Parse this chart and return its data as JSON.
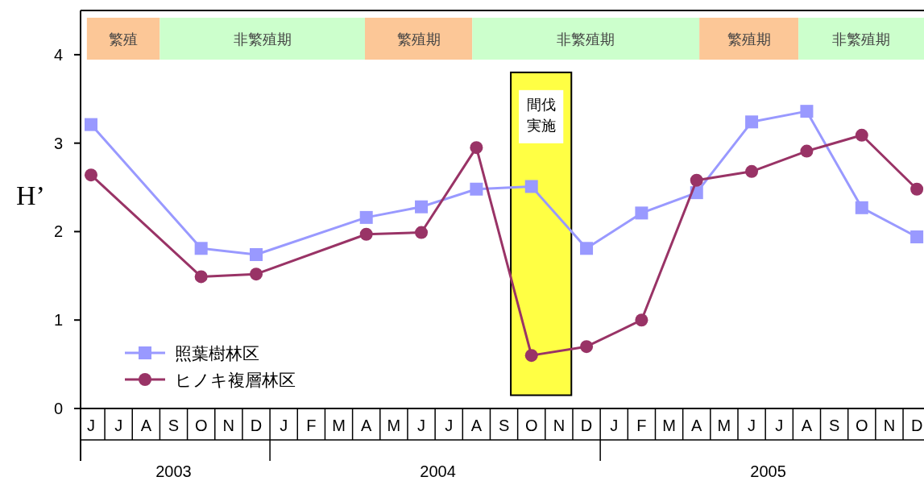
{
  "chart_data": {
    "type": "line",
    "ylabel": "H’",
    "categories": [
      "J",
      "J",
      "A",
      "S",
      "O",
      "N",
      "D",
      "J",
      "F",
      "M",
      "A",
      "M",
      "J",
      "J",
      "A",
      "S",
      "O",
      "N",
      "D",
      "J",
      "F",
      "M",
      "A",
      "M",
      "J",
      "J",
      "A",
      "S",
      "O",
      "N",
      "D"
    ],
    "series": [
      {
        "name": "照葉樹林区",
        "color": "#9999ff",
        "marker": "square",
        "values": [
          3.21,
          null,
          null,
          null,
          1.81,
          null,
          1.74,
          null,
          null,
          null,
          2.16,
          null,
          2.28,
          null,
          2.48,
          null,
          2.51,
          null,
          1.81,
          null,
          2.21,
          null,
          2.44,
          null,
          3.24,
          null,
          3.36,
          null,
          2.27,
          null,
          1.94
        ]
      },
      {
        "name": "ヒノキ複層林区",
        "color": "#993366",
        "marker": "circle",
        "values": [
          2.64,
          null,
          null,
          null,
          1.49,
          null,
          1.52,
          null,
          null,
          null,
          1.97,
          null,
          1.99,
          null,
          2.95,
          null,
          0.6,
          null,
          0.7,
          null,
          1.0,
          null,
          2.58,
          null,
          2.68,
          null,
          2.91,
          null,
          3.09,
          null,
          2.48
        ]
      }
    ],
    "ylim": [
      0,
      4.5
    ],
    "yticks": [
      0,
      1,
      2,
      3,
      4
    ],
    "legend": "bottom left",
    "line_style": "solid",
    "annotations": [
      "繁殖",
      "非繁殖期",
      "繁殖期",
      "非繁殖期",
      "繁殖期",
      "非繁殖期",
      "間伐実施",
      "2003",
      "2004",
      "2005"
    ]
  }
}
